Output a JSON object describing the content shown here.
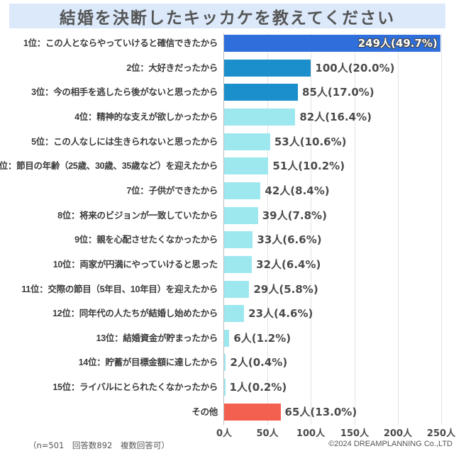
{
  "title": "結婚を決断したキッカケを教えてください",
  "footnote": "（n=501　回答数892　複数回答可）",
  "copyright": "©2024 DREAMPLANNING Co.,LTD",
  "colors": {
    "rank1": "#2e6fdc",
    "rank2_3": "#1a8fcc",
    "others": "#9de8ef",
    "other_category": "#f4604f",
    "title_bg": "#dbe9fb"
  },
  "chart_data": {
    "type": "bar",
    "orientation": "horizontal",
    "title": "結婚を決断したキッカケを教えてください",
    "xlabel": "",
    "ylabel": "",
    "xlim": [
      0,
      250
    ],
    "x_ticks": [
      "0人",
      "50人",
      "100人",
      "150人",
      "200人",
      "250人"
    ],
    "grid": true,
    "legend": null,
    "categories": [
      "1位：この人とならやっていけると確信できたから",
      "2位：大好きだったから",
      "3位：今の相手を逃したら後がないと思ったから",
      "4位：精神的な支えが欲しかったから",
      "5位：この人なしには生きられないと思ったから",
      "6位：節目の年齢（25歳、30歳、35歳など）を迎えたから",
      "7位：子供ができたから",
      "8位：将来のビジョンが一致していたから",
      "9位：親を心配させたくなかったから",
      "10位：両家が円満にやっていけると思った",
      "11位：交際の節目（5年目、10年目）を迎えたから",
      "12位：同年代の人たちが結婚し始めたから",
      "13位：結婚資金が貯まったから",
      "14位：貯蓄が目標金額に達したから",
      "15位：ライバルにとられたくなかったから",
      "その他"
    ],
    "values": [
      249,
      100,
      85,
      82,
      53,
      51,
      42,
      39,
      33,
      32,
      29,
      23,
      6,
      2,
      1,
      65
    ],
    "percentages": [
      49.7,
      20.0,
      17.0,
      16.4,
      10.6,
      10.2,
      8.4,
      7.8,
      6.6,
      6.4,
      5.8,
      4.6,
      1.2,
      0.4,
      0.2,
      13.0
    ],
    "value_labels": [
      "249人(49.7%)",
      "100人(20.0%)",
      "85人(17.0%)",
      "82人(16.4%)",
      "53人(10.6%)",
      "51人(10.2%)",
      "42人(8.4%)",
      "39人(7.8%)",
      "33人(6.6%)",
      "32人(6.4%)",
      "29人(5.8%)",
      "23人(4.6%)",
      "6人(1.2%)",
      "2人(0.4%)",
      "1人(0.2%)",
      "65人(13.0%)"
    ],
    "bar_colors": [
      "#2e6fdc",
      "#1a8fcc",
      "#1a8fcc",
      "#9de8ef",
      "#9de8ef",
      "#9de8ef",
      "#9de8ef",
      "#9de8ef",
      "#9de8ef",
      "#9de8ef",
      "#9de8ef",
      "#9de8ef",
      "#9de8ef",
      "#9de8ef",
      "#9de8ef",
      "#f4604f"
    ],
    "sample_note": "（n=501　回答数892　複数回答可）"
  }
}
